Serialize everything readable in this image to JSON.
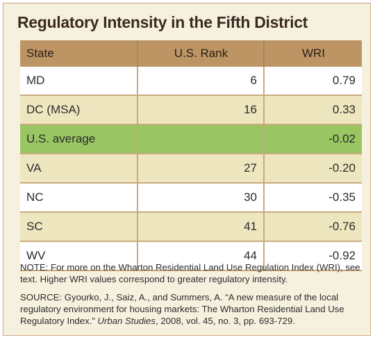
{
  "title": "Regulatory Intensity in the Fifth District",
  "columns": [
    "State",
    "U.S. Rank",
    "WRI"
  ],
  "rows": [
    {
      "state": "MD",
      "rank": "6",
      "wri": "0.79"
    },
    {
      "state": "DC (MSA)",
      "rank": "16",
      "wri": "0.33"
    },
    {
      "state": "U.S. average",
      "rank": "",
      "wri": "-0.02"
    },
    {
      "state": "VA",
      "rank": "27",
      "wri": "-0.20"
    },
    {
      "state": "NC",
      "rank": "30",
      "wri": "-0.35"
    },
    {
      "state": "SC",
      "rank": "41",
      "wri": "-0.76"
    },
    {
      "state": "WV",
      "rank": "44",
      "wri": "-0.92"
    }
  ],
  "note": {
    "label": "NOTE:",
    "text": " For more on the Wharton Residential Land Use Regulation Index (WRI), see text. Higher WRI values correspond to greater regulatory intensity."
  },
  "source": {
    "label": "SOURCE:",
    "text": " Gyourko, J., Saiz, A., and Summers, A. “A new measure of the local regulatory environment for housing markets: The Wharton Residential Land Use Regulatory Index.” ",
    "journal": "Urban Studies",
    "citation": ", 2008, vol. 45, no. 3, pp. 693-729."
  }
}
